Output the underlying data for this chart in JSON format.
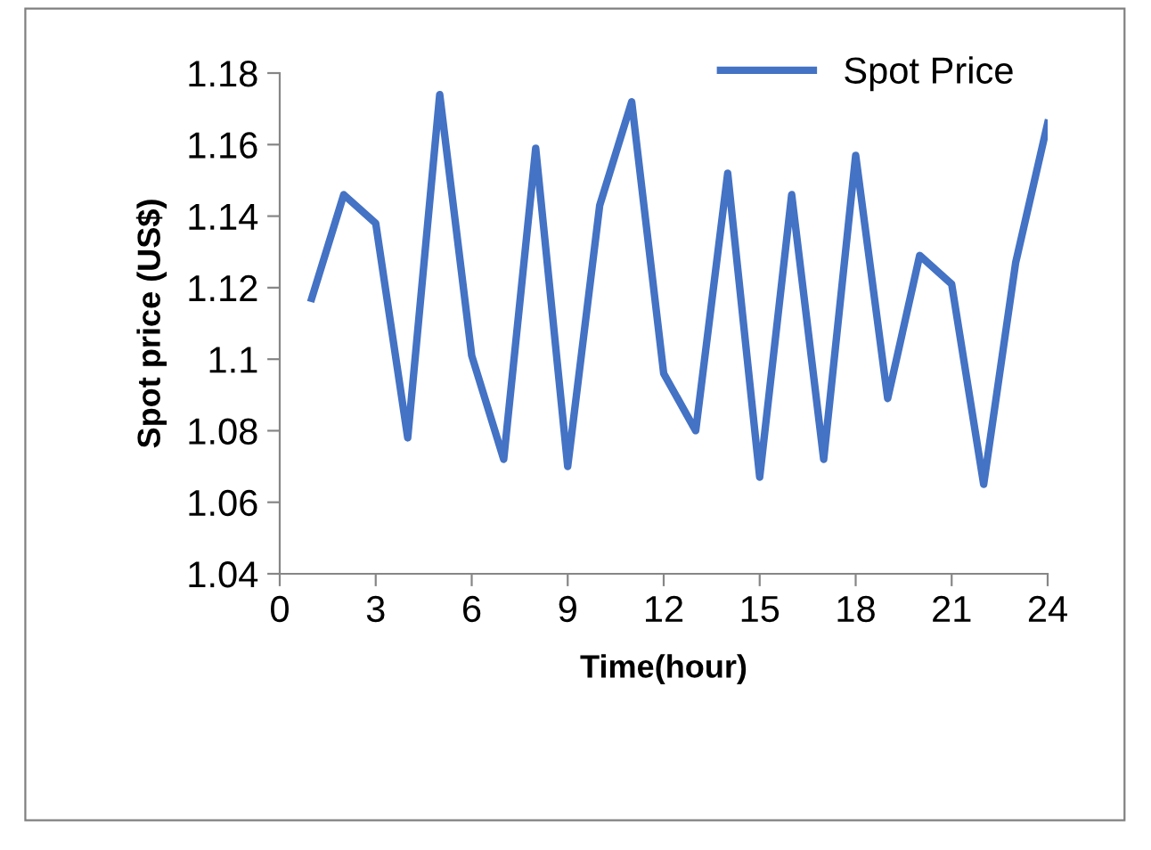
{
  "chart_data": {
    "type": "line",
    "xlabel": "Time(hour)",
    "ylabel": "Spot price (US$)",
    "x": [
      1,
      2,
      3,
      4,
      5,
      6,
      7,
      8,
      9,
      10,
      11,
      12,
      13,
      14,
      15,
      16,
      17,
      18,
      19,
      20,
      21,
      22,
      23,
      24
    ],
    "series": [
      {
        "name": "Spot Price",
        "color": "#4472c4",
        "values": [
          1.117,
          1.146,
          1.138,
          1.078,
          1.174,
          1.101,
          1.072,
          1.159,
          1.07,
          1.143,
          1.172,
          1.096,
          1.08,
          1.152,
          1.067,
          1.146,
          1.072,
          1.157,
          1.089,
          1.129,
          1.121,
          1.065,
          1.127,
          1.166
        ]
      }
    ],
    "xlim": [
      0,
      24
    ],
    "xticks": [
      0,
      3,
      6,
      9,
      12,
      15,
      18,
      21,
      24
    ],
    "ylim": [
      1.04,
      1.18
    ],
    "yticks": [
      1.04,
      1.06,
      1.08,
      1.1,
      1.12,
      1.14,
      1.16,
      1.18
    ],
    "grid": false,
    "legend": "top right",
    "marker": "none",
    "line_style": "solid"
  }
}
